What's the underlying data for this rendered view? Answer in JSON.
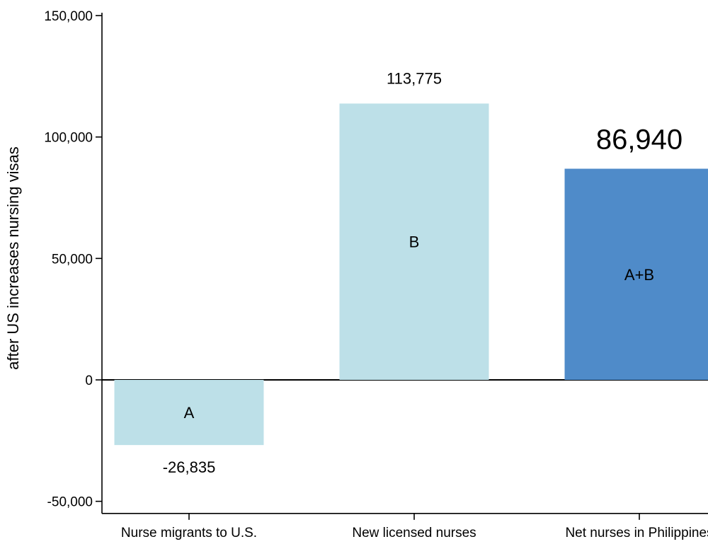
{
  "chart_data": {
    "type": "bar",
    "categories": [
      "Nurse migrants to U.S.",
      "New licensed nurses",
      "Net nurses in Philippines"
    ],
    "values": [
      -26835,
      113775,
      86940
    ],
    "value_labels": [
      "-26,835",
      "113,775",
      "86,940"
    ],
    "bar_letters": [
      "A",
      "B",
      "A+B"
    ],
    "ylabel": "after US increases nursing visas",
    "ylim": [
      -55000,
      150000
    ],
    "yticks": [
      -50000,
      0,
      50000,
      100000,
      150000
    ],
    "ytick_labels": [
      "-50,000",
      "0",
      "50,000",
      "100,000",
      "150,000"
    ],
    "colors": [
      "#bde0e8",
      "#bde0e8",
      "#4f8bc9"
    ],
    "highlight_label_color": "#4f8bc9",
    "grid": false,
    "legend": "none"
  }
}
